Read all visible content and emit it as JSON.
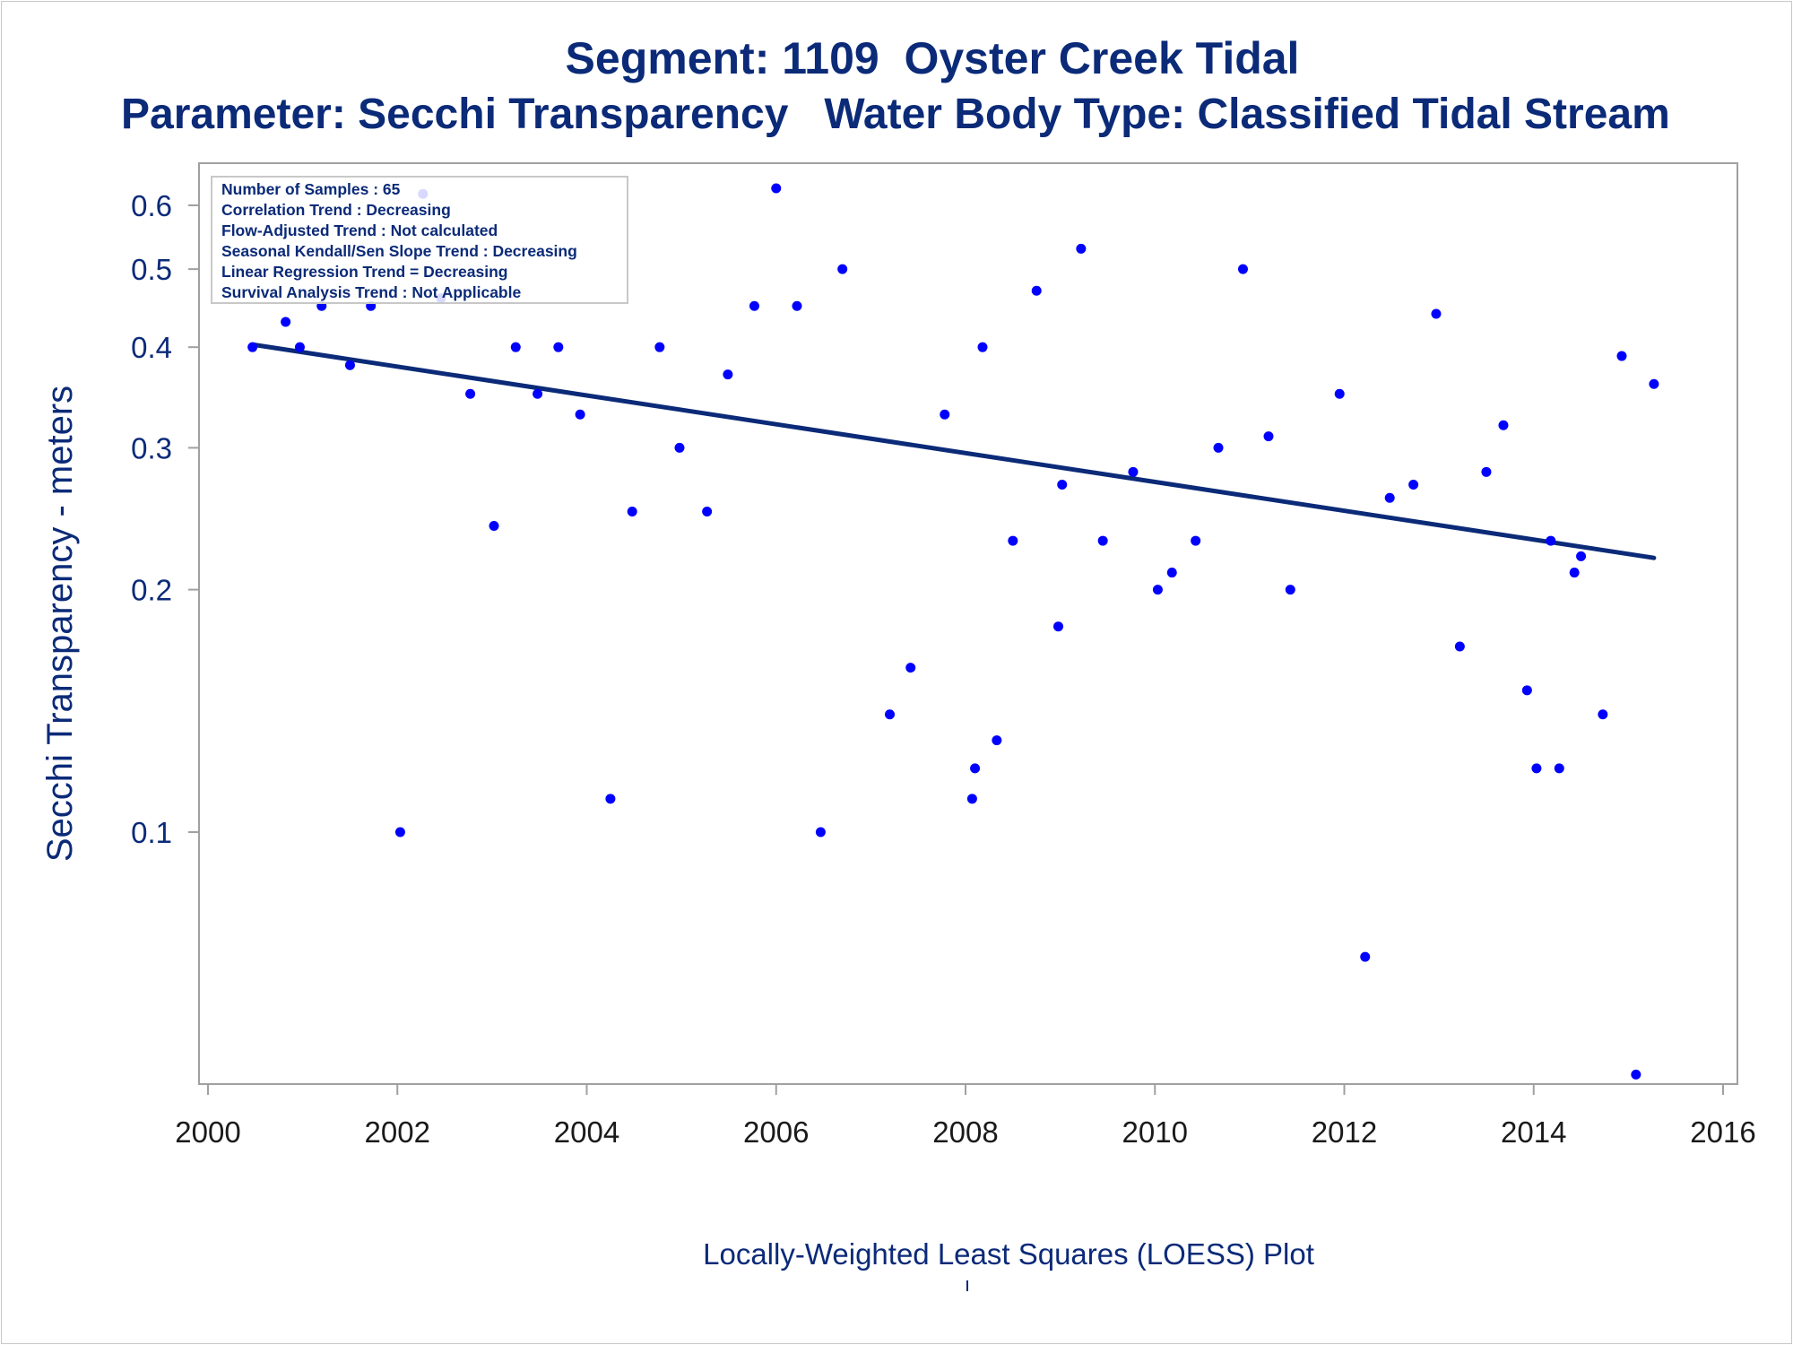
{
  "titles": {
    "line1": "Segment: 1109  Oyster Creek Tidal",
    "line2": "Parameter: Secchi Transparency   Water Body Type: Classified Tidal Stream"
  },
  "footer_label": "Locally-Weighted Least Squares (LOESS) Plot",
  "colors": {
    "text": "#0b2a78",
    "points": "#0000ff",
    "trend_line": "#0b2a78",
    "frame": "#a0a0a0"
  },
  "stats_box": {
    "lines": [
      "Number of Samples : 65",
      "Correlation Trend : Decreasing",
      "Flow-Adjusted Trend : Not calculated",
      "Seasonal Kendall/Sen Slope Trend : Decreasing",
      "Linear Regression Trend = Decreasing",
      "Survival Analysis Trend : Not Applicable"
    ]
  },
  "chart_data": {
    "type": "scatter",
    "title": "Segment: 1109  Oyster Creek Tidal",
    "subtitle": "Parameter: Secchi Transparency   Water Body Type: Classified Tidal Stream",
    "xlabel": "",
    "ylabel": "Secchi Transparency - meters",
    "x_scale": "linear",
    "y_scale": "log",
    "xlim": [
      2000,
      2016
    ],
    "ylim": [
      0.05,
      0.65
    ],
    "xticks": [
      2000,
      2002,
      2004,
      2006,
      2008,
      2010,
      2012,
      2014,
      2016
    ],
    "yticks": [
      0.1,
      0.2,
      0.3,
      0.4,
      0.5,
      0.6
    ],
    "ytick_labels": [
      "0.1",
      "0.2",
      "0.3",
      "0.4",
      "0.5",
      "0.6"
    ],
    "grid": false,
    "legend": "none",
    "points": [
      {
        "x": 2000.47,
        "y": 0.4
      },
      {
        "x": 2000.82,
        "y": 0.43
      },
      {
        "x": 2000.97,
        "y": 0.4
      },
      {
        "x": 2001.2,
        "y": 0.45
      },
      {
        "x": 2001.5,
        "y": 0.38
      },
      {
        "x": 2001.72,
        "y": 0.45
      },
      {
        "x": 2002.03,
        "y": 0.1
      },
      {
        "x": 2002.27,
        "y": 0.62
      },
      {
        "x": 2002.46,
        "y": 0.46
      },
      {
        "x": 2002.77,
        "y": 0.35
      },
      {
        "x": 2003.02,
        "y": 0.24
      },
      {
        "x": 2003.25,
        "y": 0.4
      },
      {
        "x": 2003.48,
        "y": 0.35
      },
      {
        "x": 2003.7,
        "y": 0.4
      },
      {
        "x": 2003.93,
        "y": 0.33
      },
      {
        "x": 2004.25,
        "y": 0.11
      },
      {
        "x": 2004.48,
        "y": 0.25
      },
      {
        "x": 2004.77,
        "y": 0.4
      },
      {
        "x": 2004.98,
        "y": 0.3
      },
      {
        "x": 2005.27,
        "y": 0.25
      },
      {
        "x": 2005.49,
        "y": 0.37
      },
      {
        "x": 2005.77,
        "y": 0.45
      },
      {
        "x": 2006.0,
        "y": 0.63
      },
      {
        "x": 2006.22,
        "y": 0.45
      },
      {
        "x": 2006.47,
        "y": 0.1
      },
      {
        "x": 2006.7,
        "y": 0.5
      },
      {
        "x": 2007.2,
        "y": 0.14
      },
      {
        "x": 2007.42,
        "y": 0.16
      },
      {
        "x": 2007.78,
        "y": 0.33
      },
      {
        "x": 2008.07,
        "y": 0.11
      },
      {
        "x": 2008.1,
        "y": 0.12
      },
      {
        "x": 2008.18,
        "y": 0.4
      },
      {
        "x": 2008.33,
        "y": 0.13
      },
      {
        "x": 2008.5,
        "y": 0.23
      },
      {
        "x": 2008.75,
        "y": 0.47
      },
      {
        "x": 2008.98,
        "y": 0.18
      },
      {
        "x": 2009.02,
        "y": 0.27
      },
      {
        "x": 2009.22,
        "y": 0.53
      },
      {
        "x": 2009.45,
        "y": 0.23
      },
      {
        "x": 2009.77,
        "y": 0.28
      },
      {
        "x": 2010.03,
        "y": 0.2
      },
      {
        "x": 2010.18,
        "y": 0.21
      },
      {
        "x": 2010.43,
        "y": 0.23
      },
      {
        "x": 2010.67,
        "y": 0.3
      },
      {
        "x": 2010.93,
        "y": 0.5
      },
      {
        "x": 2011.2,
        "y": 0.31
      },
      {
        "x": 2011.43,
        "y": 0.2
      },
      {
        "x": 2011.95,
        "y": 0.35
      },
      {
        "x": 2012.22,
        "y": 0.07
      },
      {
        "x": 2012.48,
        "y": 0.26
      },
      {
        "x": 2012.73,
        "y": 0.27
      },
      {
        "x": 2012.97,
        "y": 0.44
      },
      {
        "x": 2013.22,
        "y": 0.17
      },
      {
        "x": 2013.5,
        "y": 0.28
      },
      {
        "x": 2013.68,
        "y": 0.32
      },
      {
        "x": 2013.93,
        "y": 0.15
      },
      {
        "x": 2014.03,
        "y": 0.12
      },
      {
        "x": 2014.18,
        "y": 0.23
      },
      {
        "x": 2014.27,
        "y": 0.12
      },
      {
        "x": 2014.43,
        "y": 0.21
      },
      {
        "x": 2014.5,
        "y": 0.22
      },
      {
        "x": 2014.73,
        "y": 0.14
      },
      {
        "x": 2014.93,
        "y": 0.39
      },
      {
        "x": 2015.08,
        "y": 0.05
      },
      {
        "x": 2015.27,
        "y": 0.36
      }
    ],
    "trend_line": {
      "x": [
        2000.47,
        2015.27
      ],
      "y": [
        0.403,
        0.219
      ]
    }
  }
}
